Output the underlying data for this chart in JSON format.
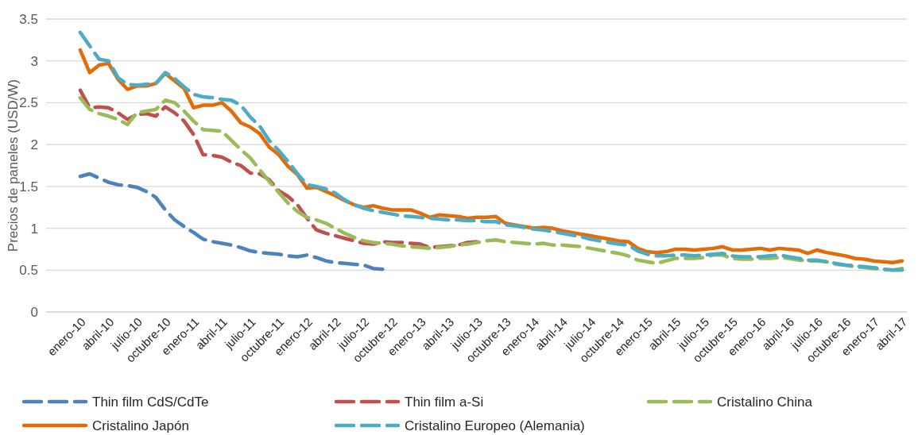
{
  "chart_data": {
    "type": "line",
    "ylabel": "Precios de paneles (USD/W)",
    "categories": [
      "enero-10",
      null,
      null,
      "abril-10",
      null,
      null,
      "julio-10",
      null,
      null,
      "octubre-10",
      null,
      null,
      "enero-11",
      null,
      null,
      "abril-11",
      null,
      null,
      "julio-11",
      null,
      null,
      "octubre-11",
      null,
      null,
      "enero-12",
      null,
      null,
      "abril-12",
      null,
      null,
      "julio-12",
      null,
      null,
      "octubre-12",
      null,
      null,
      "enero-13",
      null,
      null,
      "abril-13",
      null,
      null,
      "julio-13",
      null,
      null,
      "octubre-13",
      null,
      null,
      "enero-14",
      null,
      null,
      "abril-14",
      null,
      null,
      "julio-14",
      null,
      null,
      "octubre-14",
      null,
      null,
      "enero-15",
      null,
      null,
      "abril-15",
      null,
      null,
      "julio-15",
      null,
      null,
      "octubre-15",
      null,
      null,
      "enero-16",
      null,
      null,
      "abril-16",
      null,
      null,
      "julio-16",
      null,
      null,
      "octubre-16",
      null,
      null,
      "enero-17",
      null,
      null,
      "abril-17"
    ],
    "series": [
      {
        "name": "Thin film CdS/CdTe",
        "color": "#4f81bd",
        "line_style": "dashed",
        "values": [
          1.62,
          1.65,
          1.6,
          1.55,
          1.52,
          1.51,
          1.49,
          1.44,
          1.37,
          1.22,
          1.1,
          1.02,
          0.95,
          0.87,
          0.84,
          0.82,
          0.8,
          0.77,
          0.73,
          0.71,
          0.7,
          0.69,
          0.67,
          0.66,
          0.68,
          0.65,
          0.61,
          0.59,
          0.58,
          0.57,
          0.56,
          0.52,
          0.51,
          null,
          null,
          null,
          null,
          null,
          null,
          null,
          null,
          null,
          null,
          null,
          null,
          null,
          null,
          null,
          null,
          null,
          null,
          null,
          null,
          null,
          null,
          null,
          null,
          null,
          null,
          null,
          null,
          null,
          null,
          null,
          null,
          null,
          null,
          null,
          null,
          null,
          null,
          null,
          null,
          null,
          null,
          null,
          null,
          null,
          null,
          null,
          null,
          null,
          null,
          null,
          null,
          null,
          null,
          null
        ]
      },
      {
        "name": "Thin film a-Si",
        "color": "#c0504d",
        "line_style": "dashed",
        "values": [
          2.65,
          2.44,
          2.45,
          2.44,
          2.38,
          2.3,
          2.36,
          2.37,
          2.34,
          2.45,
          2.38,
          2.28,
          2.12,
          1.88,
          1.87,
          1.85,
          1.79,
          1.75,
          1.66,
          1.65,
          1.58,
          1.45,
          1.38,
          1.28,
          1.12,
          0.98,
          0.94,
          0.91,
          0.88,
          0.85,
          0.82,
          0.81,
          0.84,
          0.83,
          0.83,
          0.82,
          0.81,
          0.77,
          0.78,
          0.79,
          0.8,
          0.83,
          0.84,
          null,
          null,
          null,
          null,
          null,
          null,
          null,
          null,
          null,
          null,
          null,
          null,
          null,
          null,
          null,
          null,
          null,
          null,
          null,
          null,
          null,
          null,
          null,
          null,
          null,
          null,
          null,
          null,
          null,
          null,
          null,
          null,
          null,
          null,
          null,
          null,
          null,
          null,
          null,
          null,
          null,
          null,
          null,
          null,
          null
        ]
      },
      {
        "name": "Cristalino China",
        "color": "#9bbb59",
        "line_style": "dashed",
        "values": [
          2.56,
          2.42,
          2.37,
          2.34,
          2.3,
          2.24,
          2.38,
          2.4,
          2.42,
          2.53,
          2.5,
          2.4,
          2.28,
          2.18,
          2.17,
          2.16,
          2.05,
          1.94,
          1.84,
          1.7,
          1.56,
          1.43,
          1.3,
          1.2,
          1.13,
          1.1,
          1.06,
          1.0,
          0.94,
          0.89,
          0.85,
          0.83,
          0.82,
          0.81,
          0.79,
          0.78,
          0.77,
          0.76,
          0.77,
          0.78,
          0.8,
          0.81,
          0.83,
          0.85,
          0.86,
          0.84,
          0.83,
          0.82,
          0.81,
          0.82,
          0.8,
          0.8,
          0.79,
          0.78,
          0.76,
          0.74,
          0.72,
          0.7,
          0.67,
          0.62,
          0.6,
          0.58,
          0.61,
          0.64,
          0.64,
          0.64,
          0.65,
          0.68,
          0.68,
          0.64,
          0.63,
          0.63,
          0.64,
          0.64,
          0.65,
          0.64,
          0.62,
          0.61,
          0.61,
          0.6,
          0.57,
          0.56,
          0.54,
          0.53,
          0.52,
          0.51,
          0.5,
          0.52
        ]
      },
      {
        "name": "Cristalino Japón",
        "color": "#e36c09",
        "line_style": "solid",
        "values": [
          3.13,
          2.86,
          2.95,
          2.97,
          2.78,
          2.66,
          2.7,
          2.7,
          2.73,
          2.85,
          2.76,
          2.67,
          2.44,
          2.47,
          2.47,
          2.5,
          2.4,
          2.26,
          2.21,
          2.13,
          1.97,
          1.88,
          1.74,
          1.64,
          1.48,
          1.49,
          1.44,
          1.39,
          1.33,
          1.28,
          1.25,
          1.27,
          1.24,
          1.22,
          1.22,
          1.22,
          1.18,
          1.13,
          1.16,
          1.15,
          1.14,
          1.12,
          1.13,
          1.13,
          1.14,
          1.06,
          1.04,
          1.02,
          1.0,
          1.01,
          1.0,
          0.97,
          0.95,
          0.93,
          0.91,
          0.89,
          0.87,
          0.85,
          0.84,
          0.76,
          0.72,
          0.71,
          0.72,
          0.75,
          0.75,
          0.74,
          0.75,
          0.76,
          0.78,
          0.74,
          0.74,
          0.75,
          0.76,
          0.74,
          0.76,
          0.75,
          0.74,
          0.7,
          0.74,
          0.71,
          0.69,
          0.67,
          0.64,
          0.63,
          0.61,
          0.6,
          0.59,
          0.61
        ]
      },
      {
        "name": "Cristalino Europeo (Alemania)",
        "color": "#4bacc6",
        "line_style": "dashed",
        "values": [
          3.34,
          3.18,
          3.02,
          3.0,
          2.8,
          2.72,
          2.71,
          2.72,
          2.73,
          2.86,
          2.79,
          2.69,
          2.6,
          2.57,
          2.56,
          2.54,
          2.53,
          2.47,
          2.33,
          2.22,
          2.05,
          1.93,
          1.8,
          1.65,
          1.52,
          1.5,
          1.47,
          1.42,
          1.34,
          1.28,
          1.24,
          1.21,
          1.19,
          1.17,
          1.15,
          1.14,
          1.13,
          1.12,
          1.11,
          1.1,
          1.1,
          1.09,
          1.09,
          1.08,
          1.08,
          1.04,
          1.03,
          1.01,
          0.99,
          0.98,
          0.96,
          0.94,
          0.92,
          0.9,
          0.87,
          0.85,
          0.83,
          0.81,
          0.8,
          0.73,
          0.69,
          0.67,
          0.67,
          0.68,
          0.68,
          0.67,
          0.68,
          0.69,
          0.7,
          0.67,
          0.66,
          0.66,
          0.66,
          0.67,
          0.68,
          0.66,
          0.64,
          0.62,
          0.62,
          0.6,
          0.58,
          0.56,
          0.55,
          0.54,
          0.53,
          0.51,
          0.5,
          0.5
        ]
      }
    ],
    "ylim": [
      0,
      3.5
    ],
    "yticks": [
      0,
      0.5,
      1,
      1.5,
      2,
      2.5,
      3,
      3.5
    ],
    "grid": "y",
    "legend": "bottom"
  }
}
